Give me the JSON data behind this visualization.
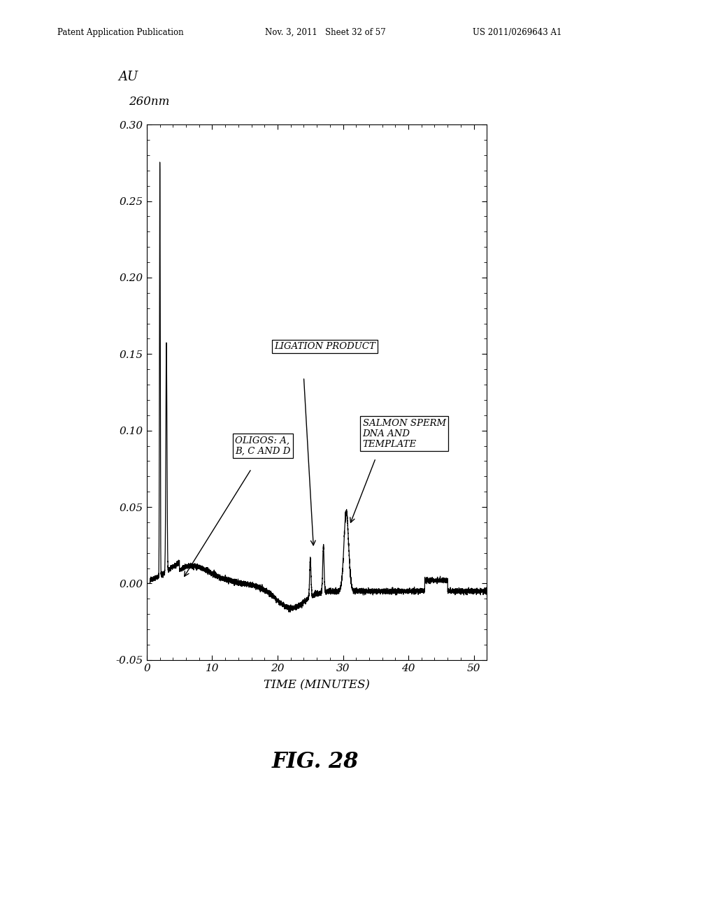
{
  "title": "FIG. 28",
  "header_left": "Patent Application Publication",
  "header_mid": "Nov. 3, 2011   Sheet 32 of 57",
  "header_right": "US 2011/0269643 A1",
  "ylabel_line1": "AU",
  "ylabel_line2": "260nm",
  "xlabel": "TIME (MINUTES)",
  "xlim": [
    0,
    52
  ],
  "ylim": [
    -0.05,
    0.3
  ],
  "yticks": [
    -0.05,
    0.0,
    0.05,
    0.1,
    0.15,
    0.2,
    0.25,
    0.3
  ],
  "xticks": [
    0,
    10,
    20,
    30,
    40,
    50
  ],
  "background_color": "#ffffff",
  "line_color": "#000000"
}
